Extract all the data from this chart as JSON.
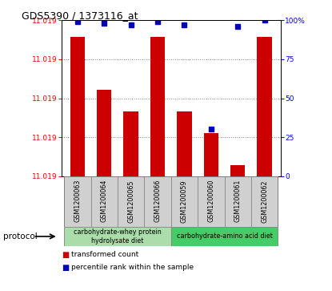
{
  "title": "GDS5390 / 1373116_at",
  "samples": [
    "GSM1200063",
    "GSM1200064",
    "GSM1200065",
    "GSM1200066",
    "GSM1200059",
    "GSM1200060",
    "GSM1200061",
    "GSM1200062"
  ],
  "red_values": [
    11.0197,
    11.0192,
    11.019,
    11.0197,
    11.019,
    11.0188,
    11.0185,
    11.0197
  ],
  "blue_values": [
    99,
    98,
    97,
    99,
    97,
    30,
    96,
    100
  ],
  "y_min": 11.0184,
  "y_max": 11.01985,
  "right_y_ticks": [
    0,
    25,
    50,
    75,
    100
  ],
  "group1_label": "carbohydrate-whey protein\nhydrolysate diet",
  "group2_label": "carbohydrate-amino acid diet",
  "group1_color": "#aaddaa",
  "group2_color": "#44cc66",
  "bar_color_red": "#CC0000",
  "bar_color_blue": "#0000BB",
  "legend_red": "transformed count",
  "legend_blue": "percentile rank within the sample",
  "sample_bg": "#D0D0D0"
}
